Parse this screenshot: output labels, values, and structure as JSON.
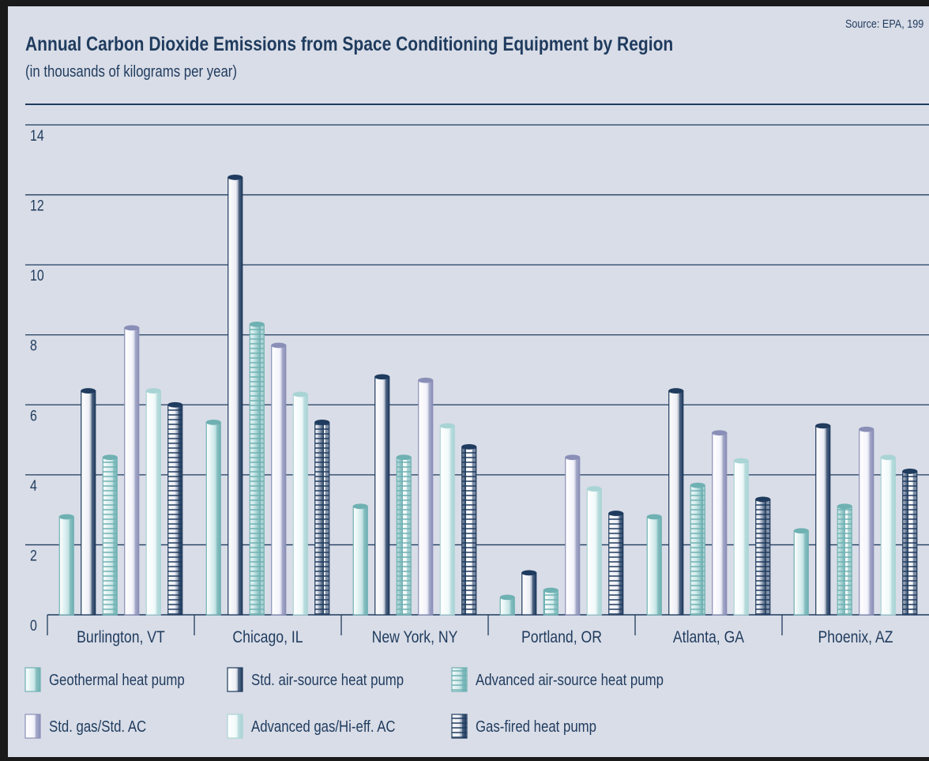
{
  "title": "Annual Carbon Dioxide Emissions from Space Conditioning Equipment by Region",
  "subtitle": "(in thousands of kilograms per year)",
  "source": "Source: EPA, 199",
  "colors": {
    "background": "#d9dde7",
    "grid": "#1f3b5e",
    "text": "#1f3b5e"
  },
  "chart_data": {
    "type": "bar",
    "title": "Annual Carbon Dioxide Emissions from Space Conditioning Equipment by Region",
    "subtitle": "(in thousands of kilograms per year)",
    "xlabel": "",
    "ylabel": "",
    "ylim": [
      0,
      14
    ],
    "yticks": [
      "0",
      "2",
      "4",
      "6",
      "8",
      "10",
      "12",
      "14"
    ],
    "grid": true,
    "legend_position": "bottom",
    "categories": [
      "Burlington, VT",
      "Chicago, IL",
      "New York, NY",
      "Portland, OR",
      "Atlanta, GA",
      "Phoenix, AZ"
    ],
    "series": [
      {
        "name": "Geothermal heat pump",
        "values": [
          2.8,
          5.5,
          3.1,
          0.5,
          2.8,
          2.4
        ],
        "color": "#cfe9ea",
        "edge": "#6fb1b3",
        "pattern": "plain"
      },
      {
        "name": "Std. air-source heat pump",
        "values": [
          6.4,
          12.5,
          6.8,
          1.2,
          6.4,
          5.4
        ],
        "color": "#eceef5",
        "edge": "#1f3b5e",
        "pattern": "plain"
      },
      {
        "name": "Advanced air-source heat pump",
        "values": [
          4.5,
          8.3,
          4.5,
          0.7,
          3.7,
          3.1
        ],
        "color": "#cfe9ea",
        "edge": "#6fb1b3",
        "pattern": "hstripes"
      },
      {
        "name": "Std. gas/Std. AC",
        "values": [
          8.2,
          7.7,
          6.7,
          4.5,
          5.2,
          5.3
        ],
        "color": "#f4f4fb",
        "edge": "#8a8fb8",
        "pattern": "plain"
      },
      {
        "name": "Advanced gas/Hi-eff. AC",
        "values": [
          6.4,
          6.3,
          5.4,
          3.6,
          4.4,
          4.5
        ],
        "color": "#f2fafa",
        "edge": "#a9d4d6",
        "pattern": "plain"
      },
      {
        "name": "Gas-fired heat pump",
        "values": [
          6.0,
          5.5,
          4.8,
          2.9,
          3.3,
          4.1
        ],
        "color": "#eceef5",
        "edge": "#1f3b5e",
        "pattern": "hstripes"
      }
    ]
  }
}
